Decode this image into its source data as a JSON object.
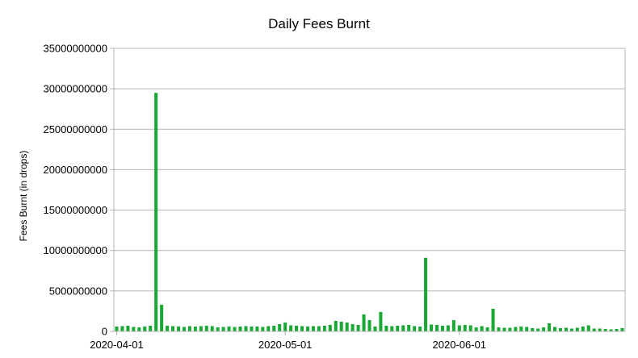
{
  "chart_data": {
    "type": "bar",
    "title": "Daily Fees Burnt",
    "ylabel": "Fees Burnt (in drops)",
    "xlabel": "",
    "ylim": [
      0,
      35000000000
    ],
    "yticks": [
      0,
      5000000000,
      10000000000,
      15000000000,
      20000000000,
      25000000000,
      30000000000,
      35000000000
    ],
    "ytick_labels": [
      "0",
      "5000000000",
      "10000000000",
      "15000000000",
      "20000000000",
      "25000000000",
      "30000000000",
      "35000000000"
    ],
    "x_start": "2020-04-01",
    "x_end": "2020-06-30",
    "xtick_dates": [
      "2020-04-01",
      "2020-05-01",
      "2020-06-01"
    ],
    "xtick_labels": [
      "2020-04-01",
      "2020-05-01",
      "2020-06-01"
    ],
    "grid": true,
    "legend": "none",
    "bar_color": "#1aa834",
    "values": [
      600000000,
      650000000,
      700000000,
      550000000,
      500000000,
      600000000,
      700000000,
      29500000000,
      3300000000,
      700000000,
      650000000,
      600000000,
      550000000,
      650000000,
      600000000,
      650000000,
      700000000,
      650000000,
      500000000,
      550000000,
      600000000,
      550000000,
      600000000,
      650000000,
      600000000,
      600000000,
      550000000,
      650000000,
      700000000,
      900000000,
      1100000000,
      750000000,
      700000000,
      650000000,
      600000000,
      650000000,
      650000000,
      700000000,
      800000000,
      1300000000,
      1200000000,
      1100000000,
      900000000,
      800000000,
      2100000000,
      1400000000,
      600000000,
      2400000000,
      700000000,
      650000000,
      700000000,
      750000000,
      800000000,
      650000000,
      600000000,
      9100000000,
      850000000,
      800000000,
      700000000,
      750000000,
      1400000000,
      750000000,
      800000000,
      750000000,
      500000000,
      650000000,
      500000000,
      2800000000,
      500000000,
      450000000,
      450000000,
      550000000,
      600000000,
      550000000,
      400000000,
      350000000,
      500000000,
      1000000000,
      550000000,
      400000000,
      450000000,
      350000000,
      450000000,
      600000000,
      750000000,
      350000000,
      350000000,
      300000000,
      250000000,
      300000000,
      400000000
    ]
  }
}
